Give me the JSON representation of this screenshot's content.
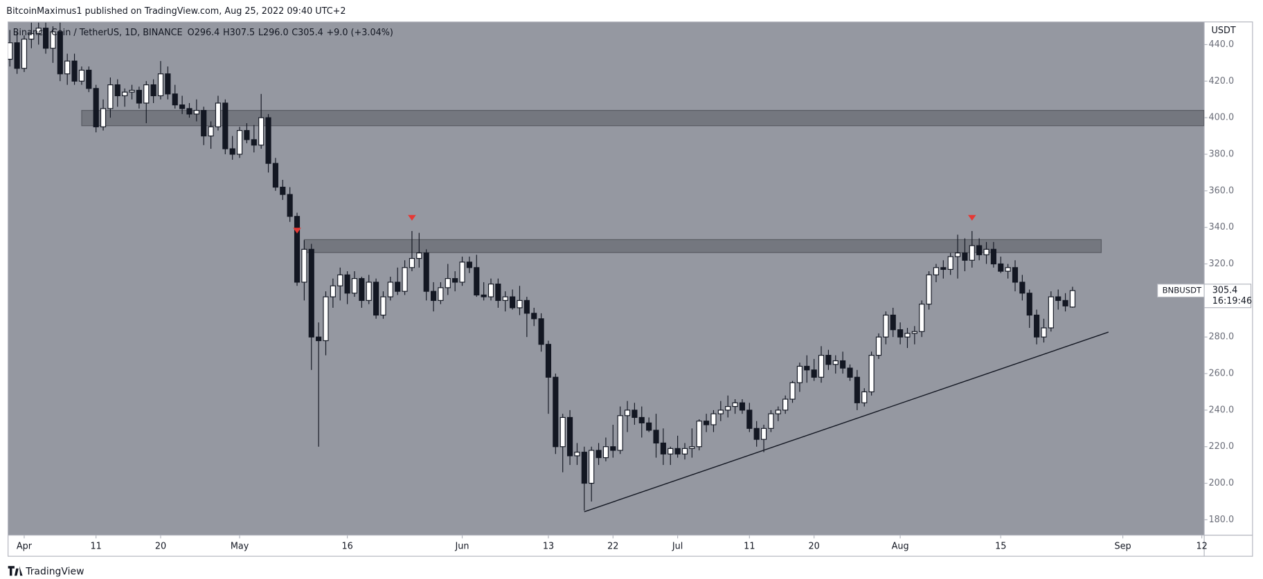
{
  "header": {
    "publisher": "BitcoinMaximus1 published on TradingView.com, Aug 25, 2022 09:40 UTC+2"
  },
  "footer": {
    "brand": "TradingView"
  },
  "chart_data": {
    "type": "candlestick",
    "title": "Binance Coin / TetherUS, 1D, BINANCE",
    "legend_values": [
      {
        "name": "O",
        "label": "296.4"
      },
      {
        "name": "H",
        "label": "307.5"
      },
      {
        "name": "L",
        "label": "296.0"
      },
      {
        "name": "C",
        "label": "305.4"
      }
    ],
    "change_label": "+9.0 (+3.04%)",
    "symbol": "BNBUSDT",
    "countdown": "16:19:46",
    "y_unit": "USDT",
    "up_color": "#ffffff",
    "down_color": "#131722",
    "background": "#9598a1",
    "x": [
      "2022-03-30",
      "2022-03-31",
      "2022-04-01",
      "2022-04-02",
      "2022-04-03",
      "2022-04-04",
      "2022-04-05",
      "2022-04-06",
      "2022-04-07",
      "2022-04-08",
      "2022-04-09",
      "2022-04-10",
      "2022-04-11",
      "2022-04-12",
      "2022-04-13",
      "2022-04-14",
      "2022-04-15",
      "2022-04-16",
      "2022-04-17",
      "2022-04-18",
      "2022-04-19",
      "2022-04-20",
      "2022-04-21",
      "2022-04-22",
      "2022-04-23",
      "2022-04-24",
      "2022-04-25",
      "2022-04-26",
      "2022-04-27",
      "2022-04-28",
      "2022-04-29",
      "2022-04-30",
      "2022-05-01",
      "2022-05-02",
      "2022-05-03",
      "2022-05-04",
      "2022-05-05",
      "2022-05-06",
      "2022-05-07",
      "2022-05-08",
      "2022-05-09",
      "2022-05-10",
      "2022-05-11",
      "2022-05-12",
      "2022-05-13",
      "2022-05-14",
      "2022-05-15",
      "2022-05-16",
      "2022-05-17",
      "2022-05-18",
      "2022-05-19",
      "2022-05-20",
      "2022-05-21",
      "2022-05-22",
      "2022-05-23",
      "2022-05-24",
      "2022-05-25",
      "2022-05-26",
      "2022-05-27",
      "2022-05-28",
      "2022-05-29",
      "2022-05-30",
      "2022-05-31",
      "2022-06-01",
      "2022-06-02",
      "2022-06-03",
      "2022-06-04",
      "2022-06-05",
      "2022-06-06",
      "2022-06-07",
      "2022-06-08",
      "2022-06-09",
      "2022-06-10",
      "2022-06-11",
      "2022-06-12",
      "2022-06-13",
      "2022-06-14",
      "2022-06-15",
      "2022-06-16",
      "2022-06-17",
      "2022-06-18",
      "2022-06-19",
      "2022-06-20",
      "2022-06-21",
      "2022-06-22",
      "2022-06-23",
      "2022-06-24",
      "2022-06-25",
      "2022-06-26",
      "2022-06-27",
      "2022-06-28",
      "2022-06-29",
      "2022-06-30",
      "2022-07-01",
      "2022-07-02",
      "2022-07-03",
      "2022-07-04",
      "2022-07-05",
      "2022-07-06",
      "2022-07-07",
      "2022-07-08",
      "2022-07-09",
      "2022-07-10",
      "2022-07-11",
      "2022-07-12",
      "2022-07-13",
      "2022-07-14",
      "2022-07-15",
      "2022-07-16",
      "2022-07-17",
      "2022-07-18",
      "2022-07-19",
      "2022-07-20",
      "2022-07-21",
      "2022-07-22",
      "2022-07-23",
      "2022-07-24",
      "2022-07-25",
      "2022-07-26",
      "2022-07-27",
      "2022-07-28",
      "2022-07-29",
      "2022-07-30",
      "2022-07-31",
      "2022-08-01",
      "2022-08-02",
      "2022-08-03",
      "2022-08-04",
      "2022-08-05",
      "2022-08-06",
      "2022-08-07",
      "2022-08-08",
      "2022-08-09",
      "2022-08-10",
      "2022-08-11",
      "2022-08-12",
      "2022-08-13",
      "2022-08-14",
      "2022-08-15",
      "2022-08-16",
      "2022-08-17",
      "2022-08-18",
      "2022-08-19",
      "2022-08-20",
      "2022-08-21",
      "2022-08-22",
      "2022-08-23",
      "2022-08-24",
      "2022-08-25"
    ],
    "open": [
      432,
      441,
      427,
      443,
      446,
      449,
      438,
      447,
      424,
      431,
      420,
      426,
      416,
      395,
      405,
      418,
      412,
      414,
      415,
      408,
      418,
      412,
      424,
      413,
      407,
      405,
      402,
      404,
      390,
      395,
      408,
      383,
      380,
      393,
      388,
      385,
      400,
      375,
      362,
      358,
      346,
      310,
      328,
      280,
      278,
      302,
      308,
      314,
      304,
      312,
      300,
      310,
      292,
      302,
      310,
      305,
      318,
      323,
      326,
      305,
      300,
      307,
      312,
      310,
      321,
      318,
      303,
      302,
      309,
      300,
      302,
      296,
      300,
      293,
      290,
      276,
      258,
      220,
      236,
      215,
      217,
      200,
      218,
      214,
      220,
      218,
      237,
      240,
      236,
      233,
      229,
      222,
      216,
      219,
      216,
      219,
      220,
      234,
      232,
      238,
      240,
      242,
      244,
      240,
      230,
      224,
      230,
      238,
      240,
      246,
      255,
      264,
      262,
      258,
      270,
      265,
      267,
      263,
      258,
      244,
      250,
      270,
      280,
      292,
      284,
      280,
      282,
      283,
      298,
      314,
      318,
      317,
      324,
      326,
      322,
      330,
      325,
      328,
      320,
      316,
      318,
      310,
      304,
      292,
      280,
      285,
      302,
      300,
      296.4
    ],
    "high": [
      448,
      447,
      445,
      452,
      452,
      452,
      450,
      452,
      435,
      435,
      428,
      428,
      418,
      410,
      422,
      421,
      416,
      418,
      417,
      420,
      421,
      431,
      428,
      418,
      412,
      408,
      410,
      406,
      398,
      412,
      410,
      390,
      395,
      397,
      396,
      413,
      402,
      378,
      366,
      362,
      348,
      333,
      331,
      288,
      305,
      312,
      318,
      316,
      316,
      313,
      314,
      312,
      305,
      313,
      318,
      322,
      338,
      337,
      328,
      310,
      310,
      320,
      316,
      324,
      324,
      325,
      310,
      312,
      312,
      305,
      306,
      308,
      302,
      296,
      293,
      278,
      260,
      238,
      240,
      222,
      220,
      220,
      222,
      225,
      232,
      242,
      245,
      244,
      242,
      236,
      238,
      230,
      220,
      226,
      222,
      230,
      235,
      238,
      240,
      245,
      248,
      246,
      246,
      244,
      234,
      232,
      240,
      242,
      248,
      256,
      266,
      270,
      268,
      275,
      273,
      270,
      272,
      265,
      262,
      252,
      272,
      282,
      294,
      296,
      288,
      285,
      286,
      300,
      316,
      320,
      322,
      326,
      336,
      334,
      338,
      334,
      332,
      332,
      324,
      320,
      322,
      314,
      306,
      295,
      290,
      305,
      306,
      304,
      307.5
    ],
    "low": [
      428,
      424,
      425,
      438,
      440,
      435,
      430,
      420,
      418,
      418,
      418,
      414,
      392,
      393,
      400,
      406,
      406,
      410,
      405,
      397,
      408,
      410,
      410,
      405,
      402,
      400,
      398,
      385,
      383,
      393,
      380,
      377,
      378,
      386,
      381,
      383,
      370,
      360,
      355,
      343,
      308,
      300,
      262,
      220,
      270,
      296,
      300,
      298,
      302,
      296,
      298,
      290,
      290,
      300,
      303,
      303,
      316,
      318,
      300,
      294,
      298,
      303,
      305,
      308,
      315,
      302,
      300,
      300,
      296,
      294,
      295,
      292,
      280,
      286,
      272,
      238,
      216,
      206,
      210,
      210,
      185,
      190,
      210,
      212,
      214,
      216,
      228,
      232,
      225,
      228,
      214,
      210,
      210,
      214,
      213,
      214,
      218,
      228,
      228,
      234,
      236,
      238,
      238,
      228,
      220,
      217,
      228,
      234,
      238,
      244,
      250,
      255,
      256,
      255,
      262,
      260,
      260,
      256,
      240,
      242,
      248,
      268,
      276,
      280,
      276,
      274,
      276,
      280,
      295,
      310,
      312,
      314,
      312,
      316,
      318,
      322,
      320,
      318,
      315,
      312,
      305,
      300,
      285,
      276,
      277,
      283,
      295,
      294,
      296
    ],
    "close": [
      441,
      427,
      443,
      446,
      449,
      438,
      447,
      424,
      431,
      420,
      426,
      416,
      395,
      405,
      418,
      412,
      414,
      415,
      408,
      418,
      412,
      424,
      413,
      407,
      405,
      402,
      404,
      390,
      395,
      408,
      383,
      380,
      393,
      388,
      385,
      400,
      375,
      362,
      358,
      346,
      310,
      328,
      280,
      278,
      302,
      308,
      314,
      304,
      312,
      300,
      310,
      292,
      302,
      310,
      305,
      318,
      323,
      326,
      305,
      300,
      307,
      312,
      310,
      321,
      318,
      303,
      302,
      309,
      300,
      302,
      296,
      300,
      293,
      290,
      276,
      258,
      220,
      236,
      215,
      217,
      200,
      218,
      214,
      220,
      218,
      237,
      240,
      236,
      233,
      229,
      222,
      216,
      219,
      216,
      219,
      220,
      234,
      232,
      238,
      240,
      242,
      244,
      240,
      230,
      224,
      230,
      238,
      240,
      246,
      255,
      264,
      262,
      258,
      270,
      265,
      267,
      263,
      258,
      244,
      250,
      270,
      280,
      292,
      284,
      280,
      282,
      283,
      298,
      314,
      318,
      317,
      324,
      326,
      322,
      330,
      325,
      328,
      320,
      316,
      318,
      310,
      304,
      292,
      280,
      285,
      302,
      300,
      297,
      305.4
    ],
    "xlim": [
      "2022-03-29T18:00:00Z",
      "2022-09-12T08:00:00Z"
    ],
    "xticks": [
      {
        "value": "2022-04-01",
        "label": "Apr"
      },
      {
        "value": "2022-04-11",
        "label": "11"
      },
      {
        "value": "2022-04-20",
        "label": "20"
      },
      {
        "value": "2022-05-01",
        "label": "May"
      },
      {
        "value": "2022-05-16",
        "label": "16"
      },
      {
        "value": "2022-06-01",
        "label": "Jun"
      },
      {
        "value": "2022-06-13",
        "label": "13"
      },
      {
        "value": "2022-06-22",
        "label": "22"
      },
      {
        "value": "2022-07-01",
        "label": "Jul"
      },
      {
        "value": "2022-07-11",
        "label": "11"
      },
      {
        "value": "2022-07-20",
        "label": "20"
      },
      {
        "value": "2022-08-01",
        "label": "Aug"
      },
      {
        "value": "2022-08-15",
        "label": "15"
      },
      {
        "value": "2022-09-01",
        "label": "Sep"
      },
      {
        "value": "2022-09-12",
        "label": "12"
      }
    ],
    "ylim": [
      171.6,
      452.4
    ],
    "yticks": [
      {
        "value": 180,
        "label": "180.0"
      },
      {
        "value": 200,
        "label": "200.0"
      },
      {
        "value": 220,
        "label": "220.0"
      },
      {
        "value": 240,
        "label": "240.0"
      },
      {
        "value": 260,
        "label": "260.0"
      },
      {
        "value": 280,
        "label": "280.0"
      },
      {
        "value": 300,
        "label": "300.0"
      },
      {
        "value": 320,
        "label": "320.0"
      },
      {
        "value": 340,
        "label": "340.0"
      },
      {
        "value": 360,
        "label": "360.0"
      },
      {
        "value": 380,
        "label": "380.0"
      },
      {
        "value": 400,
        "label": "400.0"
      },
      {
        "value": 420,
        "label": "420.0"
      },
      {
        "value": 440,
        "label": "440.0"
      }
    ],
    "zones": [
      {
        "from": "2022-04-09",
        "to": "2022-09-12T08:00:00Z",
        "low": 395.6,
        "high": 404
      },
      {
        "from": "2022-05-10",
        "to": "2022-08-29",
        "low": 326.2,
        "high": 333.3
      }
    ],
    "trendline": {
      "x": [
        "2022-06-18",
        "2022-08-30"
      ],
      "y": [
        184.4,
        282.7
      ]
    },
    "markers": {
      "color": "#e53935",
      "x": [
        "2022-05-09",
        "2022-05-25",
        "2022-08-11"
      ],
      "y": [
        338,
        345,
        345
      ]
    }
  }
}
